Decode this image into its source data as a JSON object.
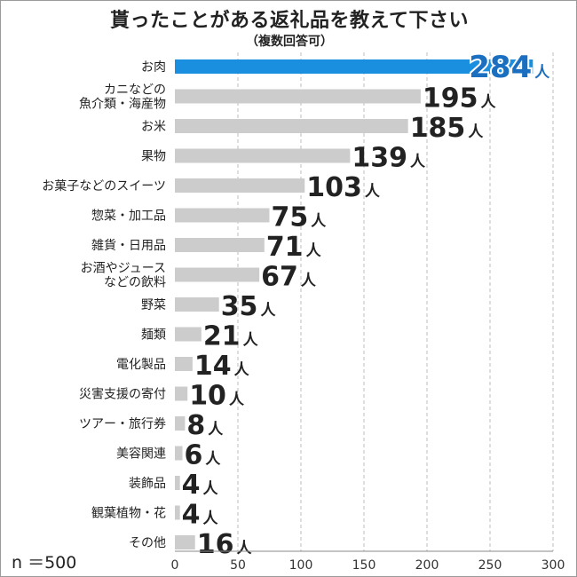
{
  "title": "貰ったことがある返礼品を教えて下さい",
  "subtitle": "（複数回答可）",
  "sample_size": "n ＝500",
  "chart_data": {
    "type": "bar",
    "orientation": "horizontal",
    "unit": "人",
    "categories": [
      [
        "お肉"
      ],
      [
        "カニなどの",
        "魚介類・海産物"
      ],
      [
        "お米"
      ],
      [
        "果物"
      ],
      [
        "お菓子などのスイーツ"
      ],
      [
        "惣菜・加工品"
      ],
      [
        "雑貨・日用品"
      ],
      [
        "お酒やジュース",
        "などの飲料"
      ],
      [
        "野菜"
      ],
      [
        "麺類"
      ],
      [
        "電化製品"
      ],
      [
        "災害支援の寄付"
      ],
      [
        "ツアー・旅行券"
      ],
      [
        "美容関連"
      ],
      [
        "装飾品"
      ],
      [
        "観葉植物・花"
      ],
      [
        "その他"
      ]
    ],
    "values": [
      284,
      195,
      185,
      139,
      103,
      75,
      71,
      67,
      35,
      21,
      14,
      10,
      8,
      6,
      4,
      4,
      16
    ],
    "xlim": [
      0,
      300
    ],
    "xticks": [
      0,
      50,
      100,
      150,
      200,
      250,
      300
    ],
    "grid": "vertical dashed",
    "colors": {
      "highlight": "#1a8fe0",
      "bar": "#cccccc",
      "highlight_label": "#1a6fc0"
    }
  }
}
